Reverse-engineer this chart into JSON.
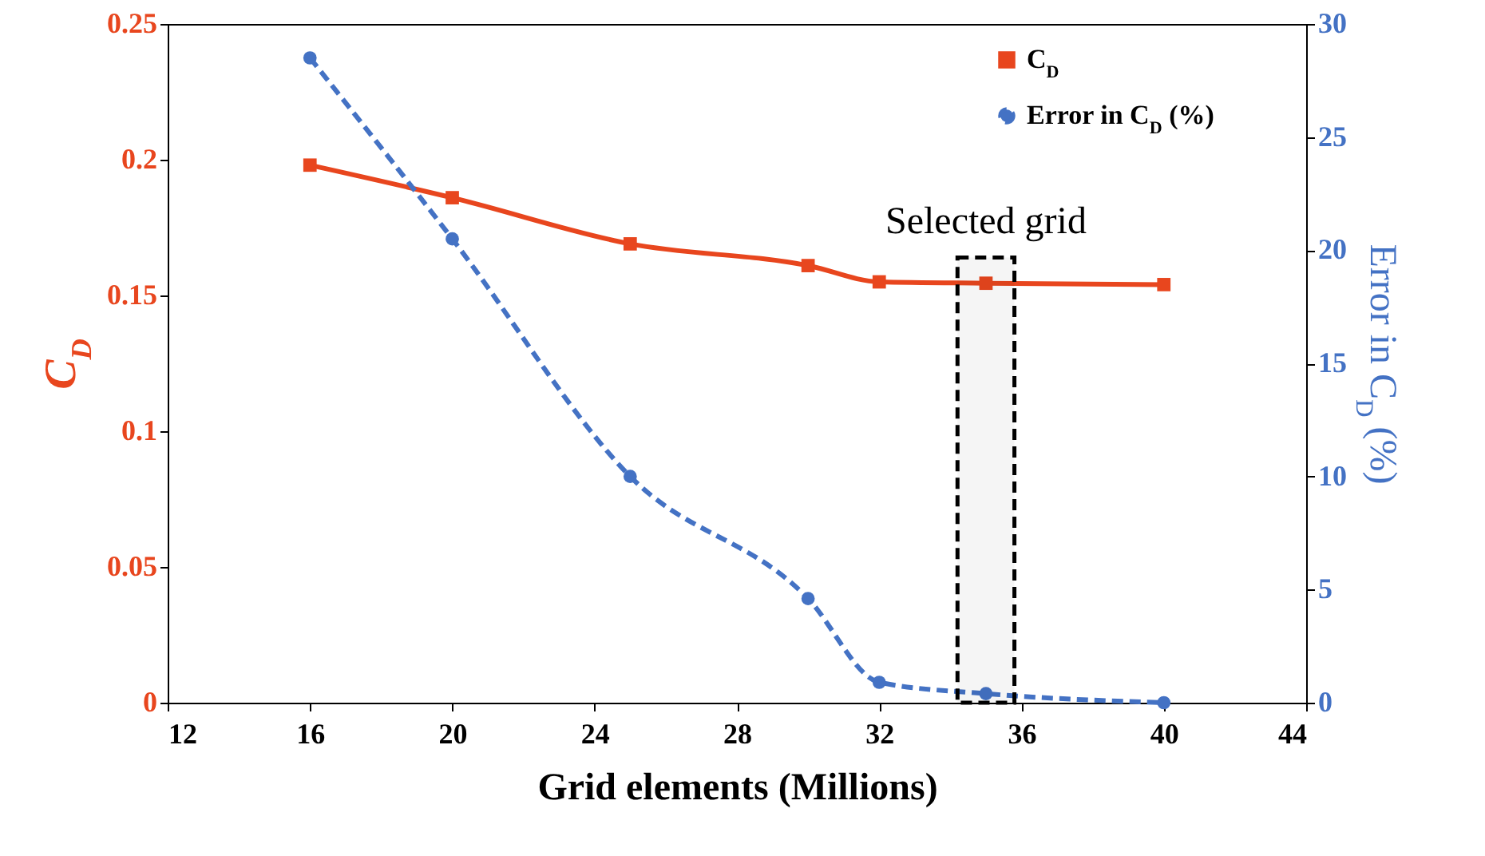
{
  "chart_data": {
    "type": "line",
    "xlabel": "Grid elements (Millions)",
    "ylabel": "C$_{D}$",
    "y2label": "Error in C$_{D}$ (%)",
    "x": [
      16,
      20,
      25,
      30,
      32,
      35,
      40
    ],
    "series": [
      {
        "name": "C$_{D}$",
        "color": "#e8461e",
        "marker": "square",
        "line_style": "solid",
        "values": [
          0.198,
          0.186,
          0.169,
          0.161,
          0.155,
          0.1545,
          0.154
        ]
      },
      {
        "name": "Error in C$_{D}$ (%)",
        "color": "#4472c4",
        "marker": "circle",
        "line_style": "dashed",
        "axis": "y2",
        "values": [
          28.5,
          20.5,
          10.0,
          4.6,
          0.9,
          0.4,
          0
        ]
      }
    ],
    "xlim": [
      12,
      44
    ],
    "xticks": [
      12,
      16,
      20,
      24,
      28,
      32,
      36,
      40,
      44
    ],
    "ylim": [
      0,
      0.25
    ],
    "yticks": [
      {
        "value": 0,
        "label": "0"
      },
      0.05,
      {
        "value": 0.1,
        "label": "0.1"
      },
      0.15,
      {
        "value": 0.2,
        "label": "0.2"
      },
      0.25
    ],
    "y2lim": [
      0,
      30
    ],
    "y2ticks": [
      0,
      5,
      10,
      15,
      20,
      25,
      30
    ],
    "bands": [
      {
        "axis": "x",
        "from": 34.2,
        "to": 35.8,
        "label": "Selected grid",
        "color": "#000000"
      }
    ],
    "legend": "top right",
    "grid": false
  }
}
